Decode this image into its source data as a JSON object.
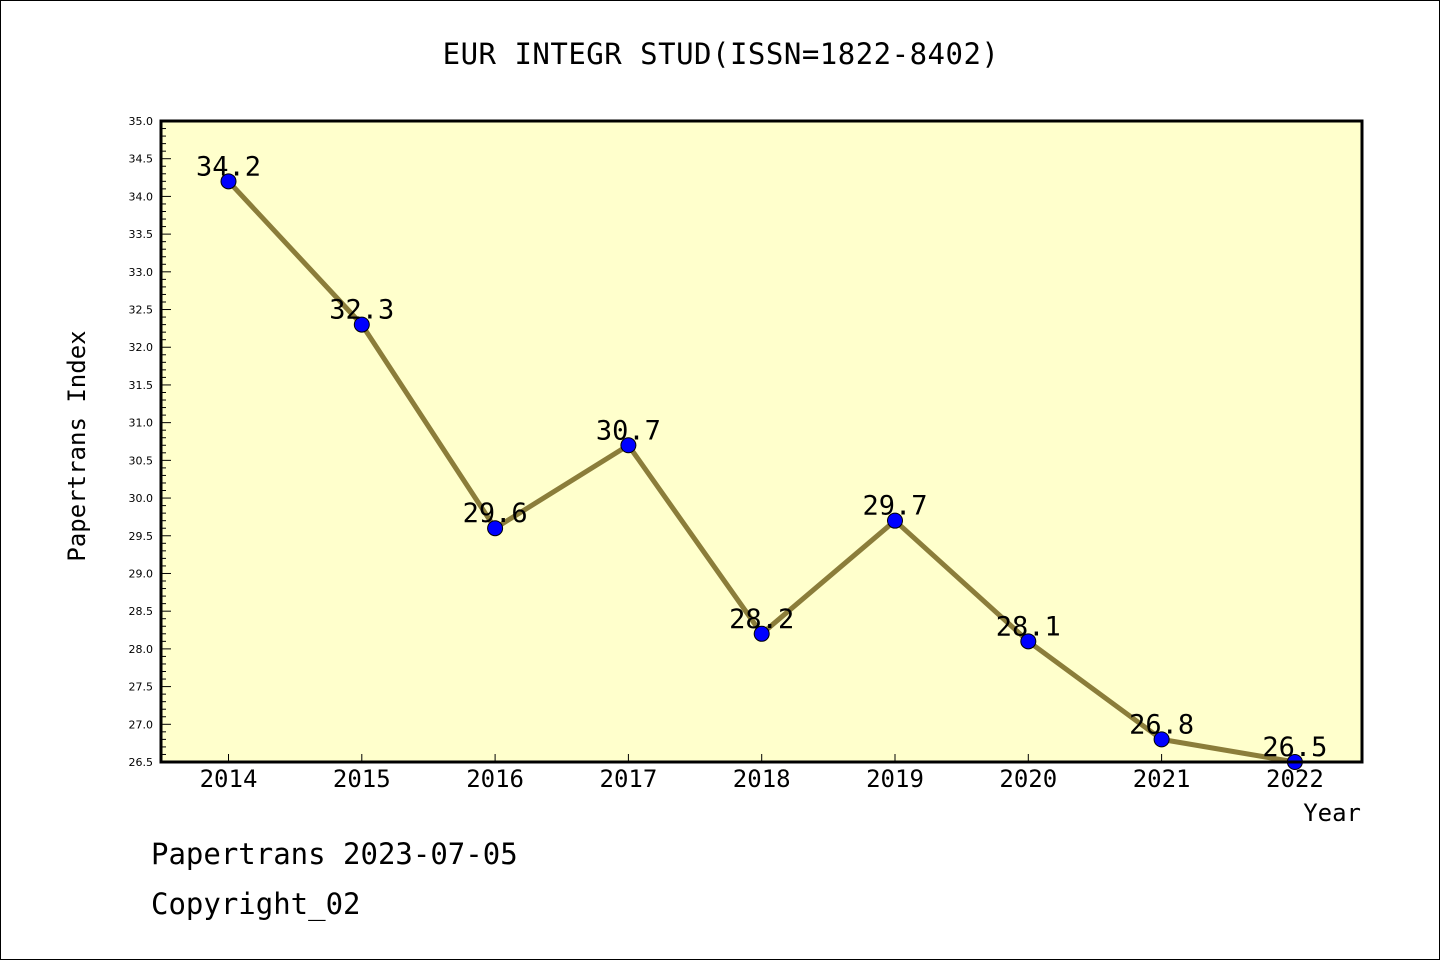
{
  "title": "EUR INTEGR STUD(ISSN=1822-8402)",
  "footer": {
    "line1": "Papertrans 2023-07-05",
    "line2": "Copyright_02"
  },
  "colors": {
    "plot_bg": "#ffffcc",
    "line": "#8b7d3a",
    "marker": "#0000ff",
    "axis": "#000000"
  },
  "chart_data": {
    "type": "line",
    "title": "EUR INTEGR STUD(ISSN=1822-8402)",
    "xlabel": "Year",
    "ylabel": "Papertrans Index",
    "categories": [
      "2014",
      "2015",
      "2016",
      "2017",
      "2018",
      "2019",
      "2020",
      "2021",
      "2022"
    ],
    "values": [
      34.2,
      32.3,
      29.6,
      30.7,
      28.2,
      29.7,
      28.1,
      26.8,
      26.5
    ],
    "data_labels": [
      "34.2",
      "32.3",
      "29.6",
      "30.7",
      "28.2",
      "29.7",
      "28.1",
      "26.8",
      "26.5"
    ],
    "ylim": [
      26.5,
      35.0
    ],
    "yticks": [
      "26.5",
      "27.0",
      "27.5",
      "28.0",
      "28.5",
      "29.0",
      "29.5",
      "30.0",
      "30.5",
      "31.0",
      "31.5",
      "32.0",
      "32.5",
      "33.0",
      "33.5",
      "34.0",
      "34.5",
      "35.0"
    ],
    "grid": false,
    "legend": "none"
  }
}
